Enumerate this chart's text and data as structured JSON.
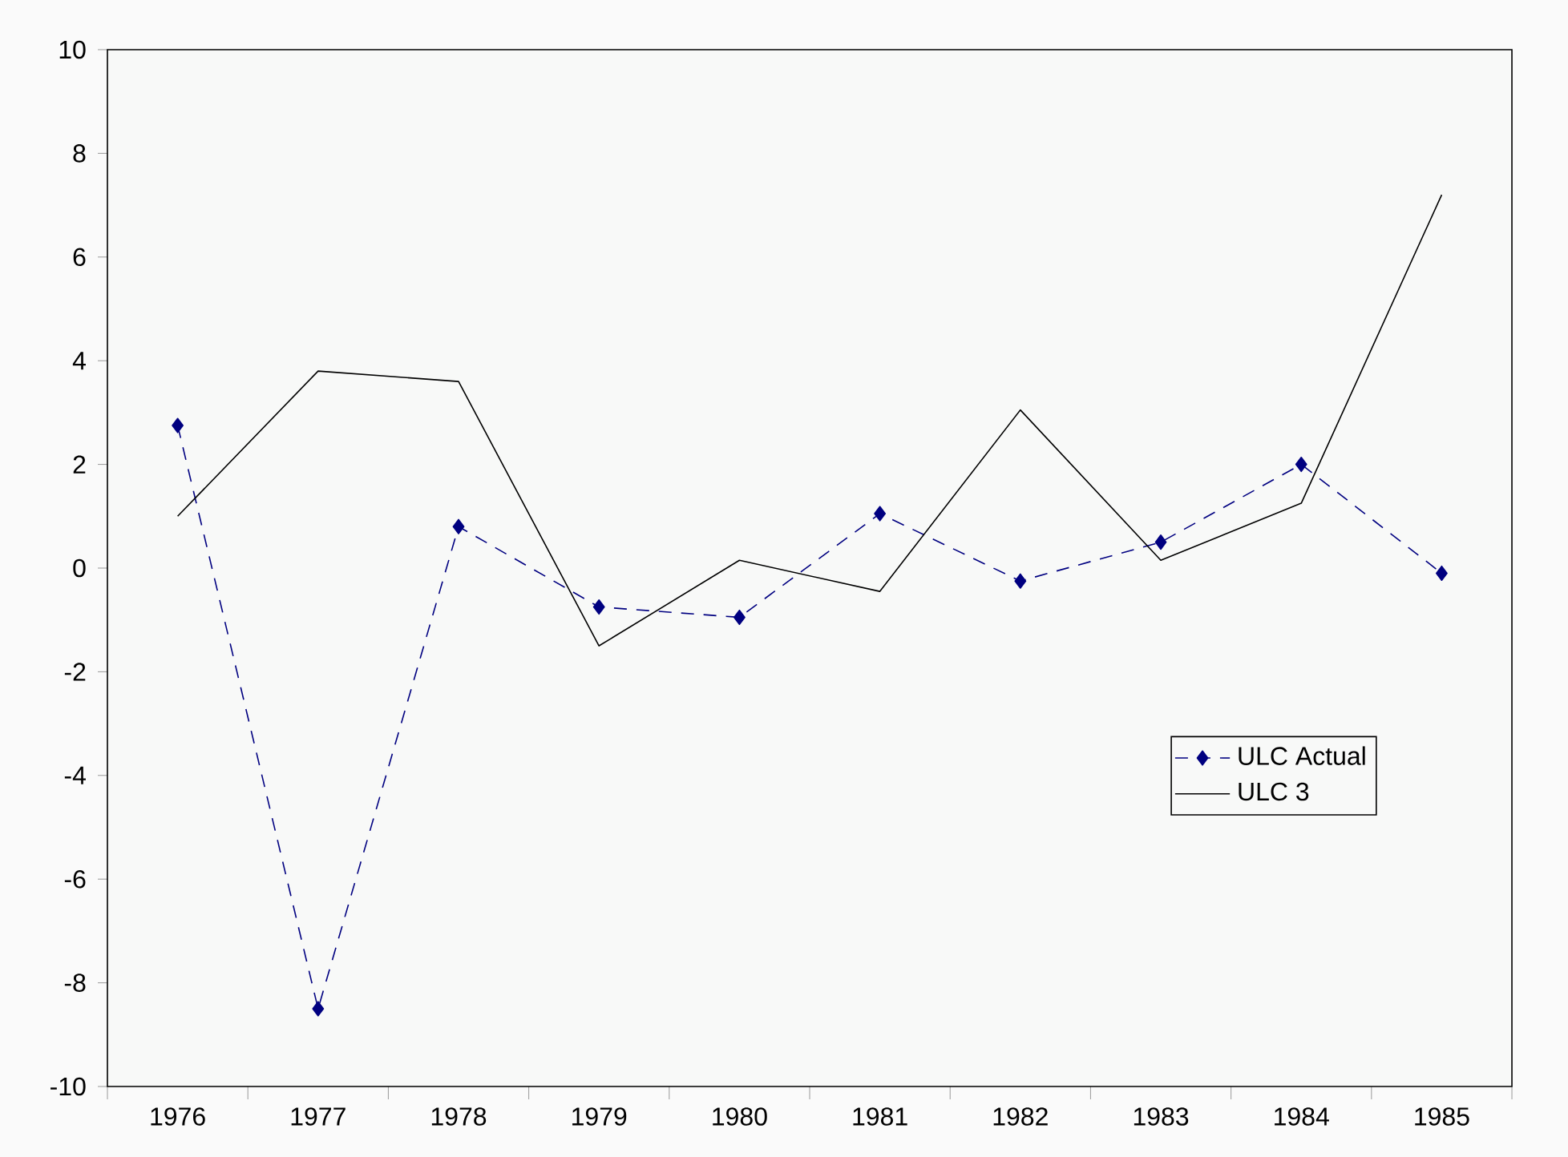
{
  "chart_data": {
    "type": "line",
    "categories": [
      "1976",
      "1977",
      "1978",
      "1979",
      "1980",
      "1981",
      "1982",
      "1983",
      "1984",
      "1985"
    ],
    "series": [
      {
        "name": "ULC Actual",
        "color": "#000080",
        "marker": "diamond",
        "line_style": "dashed",
        "values": [
          2.75,
          -8.5,
          0.8,
          -0.75,
          -0.95,
          1.05,
          -0.25,
          0.5,
          2.0,
          -0.1
        ]
      },
      {
        "name": "ULC 3",
        "color": "#000000",
        "marker": "none",
        "line_style": "solid",
        "values": [
          1.0,
          3.8,
          3.6,
          -1.5,
          0.15,
          -0.45,
          3.05,
          0.15,
          1.25,
          7.2
        ]
      }
    ],
    "ylim": [
      -10,
      10
    ],
    "yticks": [
      -10,
      -8,
      -6,
      -4,
      -2,
      0,
      2,
      4,
      6,
      8,
      10
    ],
    "grid": false,
    "legend": "right"
  }
}
